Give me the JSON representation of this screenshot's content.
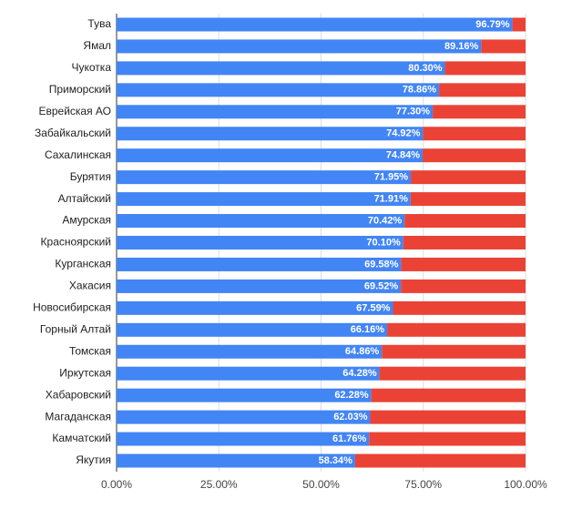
{
  "chart_data": {
    "type": "stacked-bar-horizontal",
    "categories": [
      "Тува",
      "Ямал",
      "Чукотка",
      "Приморский",
      "Еврейская АО",
      "Забайкальский",
      "Сахалинская",
      "Бурятия",
      "Алтайский",
      "Амурская",
      "Красноярский",
      "Курганская",
      "Хакасия",
      "Новосибирская",
      "Горный Алтай",
      "Томская",
      "Иркутская",
      "Хабаровский",
      "Магаданская",
      "Камчатский",
      "Якутия"
    ],
    "series": [
      {
        "color": "#4285f4",
        "values": [
          96.79,
          89.16,
          80.3,
          78.86,
          77.3,
          74.92,
          74.84,
          71.95,
          71.91,
          70.42,
          70.1,
          69.58,
          69.52,
          67.59,
          66.16,
          64.86,
          64.28,
          62.28,
          62.03,
          61.76,
          58.34
        ],
        "value_labels": [
          "96.79%",
          "89.16%",
          "80.30%",
          "78.86%",
          "77.30%",
          "74.92%",
          "74.84%",
          "71.95%",
          "71.91%",
          "70.42%",
          "70.10%",
          "69.58%",
          "69.52%",
          "67.59%",
          "66.16%",
          "64.86%",
          "64.28%",
          "62.28%",
          "62.03%",
          "61.76%",
          "58.34%"
        ]
      },
      {
        "color": "#ea4335",
        "values": [
          3.21,
          10.84,
          19.7,
          21.14,
          22.7,
          25.08,
          25.16,
          28.05,
          28.09,
          29.58,
          29.9,
          30.42,
          30.48,
          32.41,
          33.84,
          35.14,
          35.72,
          37.72,
          37.97,
          38.24,
          41.66
        ]
      }
    ],
    "xlim": [
      0,
      100
    ],
    "xticks": [
      {
        "value": 0,
        "label": "0.00%"
      },
      {
        "value": 25,
        "label": "25.00%"
      },
      {
        "value": 50,
        "label": "50.00%"
      },
      {
        "value": 75,
        "label": "75.00%"
      },
      {
        "value": 100,
        "label": "100.00%"
      }
    ],
    "grid": true
  }
}
